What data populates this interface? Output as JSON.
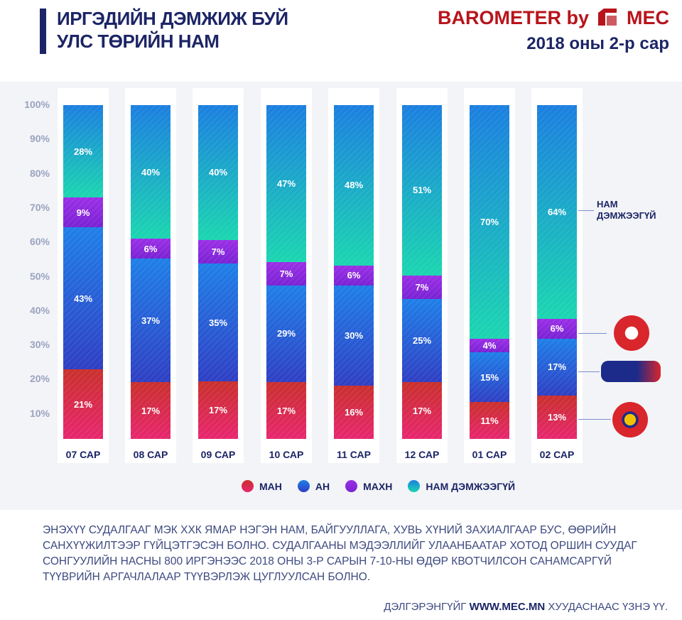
{
  "header": {
    "title_line1": "ИРГЭДИЙН ДЭМЖИЖ БУЙ",
    "title_line2": "УЛС ТӨРИЙН НАМ",
    "brand_left": "BAROMETER by",
    "brand_right": "MEC",
    "date": "2018 оны 2-р сар"
  },
  "chart_data": {
    "type": "bar",
    "stacked": true,
    "normalized": true,
    "categories": [
      "07 САР",
      "08 САР",
      "09 САР",
      "10 САР",
      "11 САР",
      "12 САР",
      "01 САР",
      "02 САР"
    ],
    "yticks": [
      "10%",
      "20%",
      "30%",
      "40%",
      "50%",
      "60%",
      "70%",
      "80%",
      "90%",
      "100%"
    ],
    "ylim": [
      0,
      100
    ],
    "series": [
      {
        "name": "МАН",
        "color": "#e8266f",
        "color2": "#c9302c",
        "values": [
          21,
          17,
          17,
          17,
          16,
          17,
          11,
          13
        ]
      },
      {
        "name": "АН",
        "color": "#2f3fc4",
        "color2": "#1f7fe8",
        "values": [
          43,
          37,
          35,
          29,
          30,
          25,
          15,
          17
        ]
      },
      {
        "name": "МАХН",
        "color": "#7a22d4",
        "color2": "#9b2fe6",
        "values": [
          9,
          6,
          7,
          7,
          6,
          7,
          4,
          6
        ]
      },
      {
        "name": "НАМ ДЭМЖЭЭГҮЙ",
        "color": "#1bd6b0",
        "color2": "#1b7fe0",
        "values": [
          28,
          40,
          40,
          47,
          48,
          51,
          70,
          64
        ]
      }
    ],
    "legend": "bottom"
  },
  "annotation": {
    "line1": "НАМ",
    "line2": "ДЭМЖЭЭГҮЙ"
  },
  "footer": {
    "note": "ЭНЭХҮҮ СУДАЛГААГ МЭК ХХК ЯМАР НЭГЭН НАМ, БАЙГУУЛЛАГА, ХУВЬ ХҮНИЙ ЗАХИАЛГААР БУС, ӨӨРИЙН САНХҮҮЖИЛТЭЭР ГҮЙЦЭТГЭСЭН БОЛНО. СУДАЛГААНЫ МЭДЭЭЛЛИЙГ УЛААНБААТАР ХОТОД ОРШИН СУУДАГ СОНГУУЛИЙН НАСНЫ 800 ИРГЭНЭЭС 2018 ОНЫ 3-Р САРЫН 7-10-НЫ ӨДӨР КВОТЧИЛСОН САНАМСАРГҮЙ ТҮҮВРИЙН АРГАЧЛАЛААР ТҮҮВЭРЛЭЖ ЦУГЛУУЛСАН БОЛНО.",
    "more_prefix": "ДЭЛГЭРЭНГҮЙГ",
    "more_link": "WWW.MEC.MN",
    "more_suffix": "ХУУДАСНААС ҮЗНЭ ҮҮ."
  }
}
